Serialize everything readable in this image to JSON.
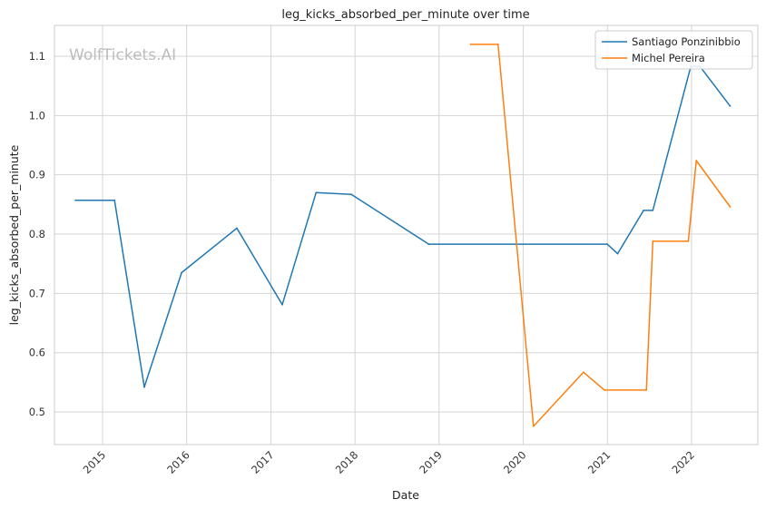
{
  "watermark": "WolfTickets.AI",
  "chart_data": {
    "type": "line",
    "title": "leg_kicks_absorbed_per_minute over time",
    "xlabel": "Date",
    "ylabel": "leg_kicks_absorbed_per_minute",
    "x_ticks": [
      "2015",
      "2016",
      "2017",
      "2018",
      "2019",
      "2020",
      "2021",
      "2022"
    ],
    "y_ticks": [
      "0.5",
      "0.6",
      "0.7",
      "0.8",
      "0.9",
      "1.0",
      "1.1"
    ],
    "xlim": [
      "2014-06-06",
      "2022-10-16"
    ],
    "ylim": [
      0.445,
      1.152
    ],
    "grid": true,
    "legend_position": "top-right",
    "colors": {
      "series_0": "#1f77b4",
      "series_1": "#ff7f0e",
      "grid": "#d4d4d4",
      "frame": "#cccccc"
    },
    "series": [
      {
        "name": "Santiago Ponzinibbio",
        "color": "#1f77b4",
        "points": [
          {
            "x": "2014-09-05",
            "y": 0.857
          },
          {
            "x": "2015-02-22",
            "y": 0.857
          },
          {
            "x": "2015-07-01",
            "y": 0.542
          },
          {
            "x": "2015-12-10",
            "y": 0.735
          },
          {
            "x": "2016-08-06",
            "y": 0.81
          },
          {
            "x": "2017-02-19",
            "y": 0.681
          },
          {
            "x": "2017-07-16",
            "y": 0.87
          },
          {
            "x": "2017-12-16",
            "y": 0.867
          },
          {
            "x": "2018-11-17",
            "y": 0.783
          },
          {
            "x": "2020-12-31",
            "y": 0.783
          },
          {
            "x": "2021-02-14",
            "y": 0.767
          },
          {
            "x": "2021-06-07",
            "y": 0.84
          },
          {
            "x": "2021-07-17",
            "y": 0.84
          },
          {
            "x": "2021-12-29",
            "y": 1.083
          },
          {
            "x": "2022-02-06",
            "y": 1.083
          },
          {
            "x": "2022-06-18",
            "y": 1.016
          }
        ]
      },
      {
        "name": "Michel Pereira",
        "color": "#ff7f0e",
        "points": [
          {
            "x": "2019-05-18",
            "y": 1.12
          },
          {
            "x": "2019-09-14",
            "y": 1.12
          },
          {
            "x": "2020-02-15",
            "y": 0.476
          },
          {
            "x": "2020-09-19",
            "y": 0.567
          },
          {
            "x": "2020-12-19",
            "y": 0.537
          },
          {
            "x": "2021-06-19",
            "y": 0.537
          },
          {
            "x": "2021-07-17",
            "y": 0.788
          },
          {
            "x": "2021-12-18",
            "y": 0.788
          },
          {
            "x": "2022-01-22",
            "y": 0.924
          },
          {
            "x": "2022-06-18",
            "y": 0.846
          }
        ]
      }
    ]
  }
}
